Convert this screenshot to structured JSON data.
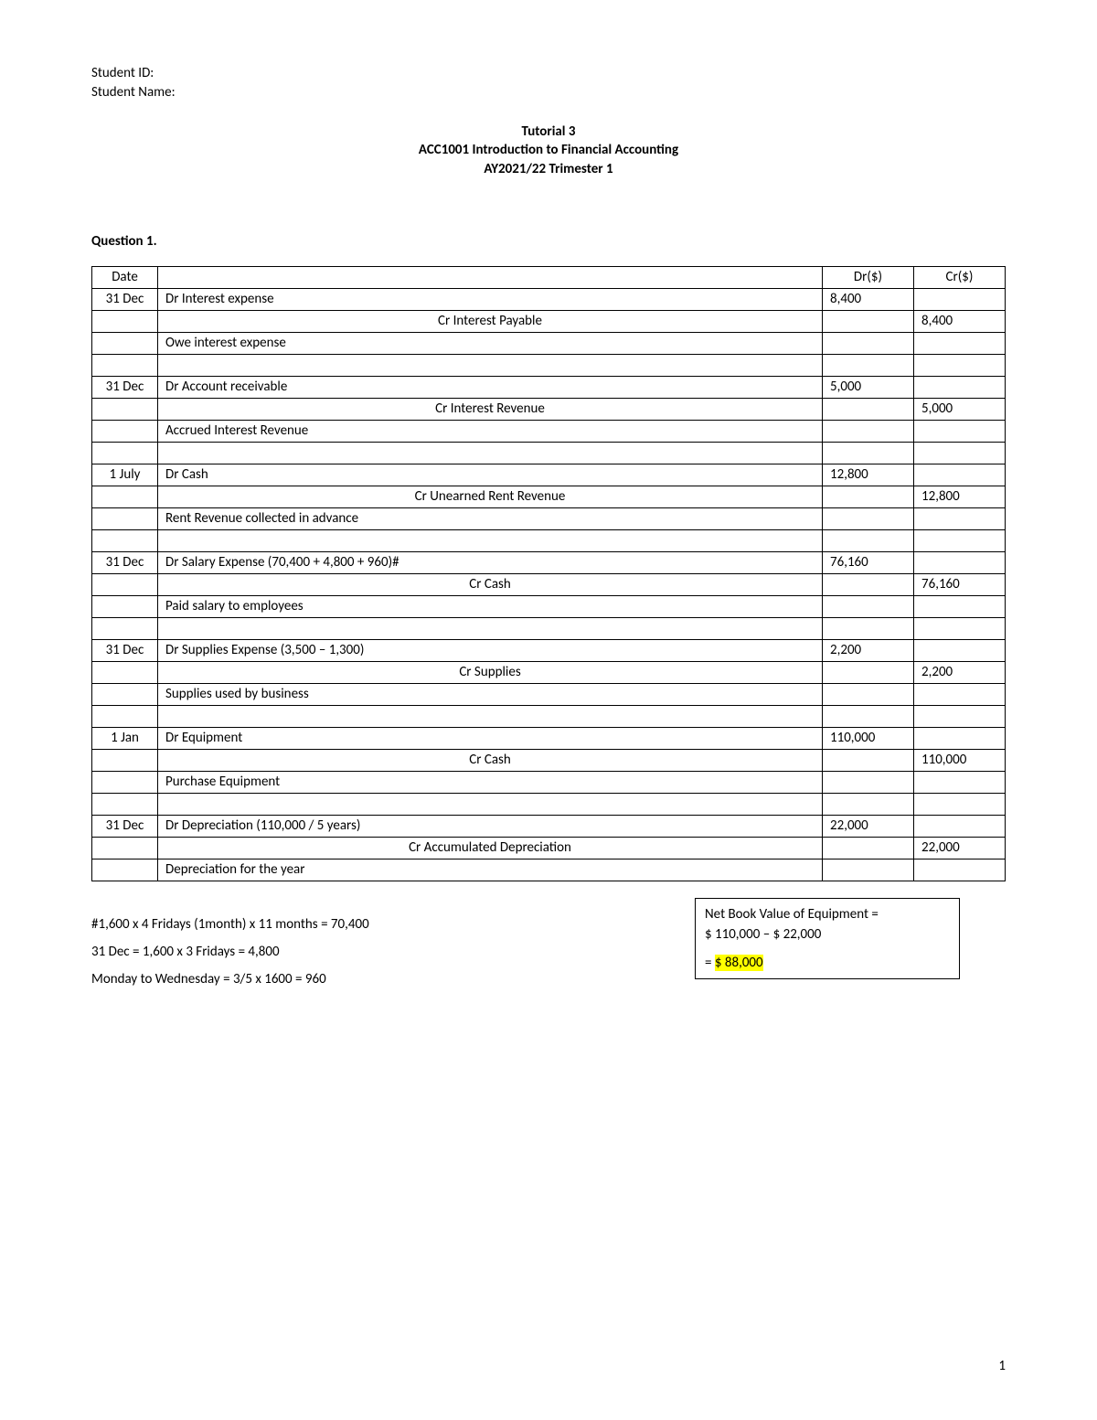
{
  "student": {
    "id_label": "Student ID:",
    "name_label": "Student Name:"
  },
  "header": {
    "line1": "Tutorial 3",
    "line2": "ACC1001 Introduction to Financial Accounting",
    "line3": "AY2021/22 Trimester 1"
  },
  "question_label": "Question 1.",
  "columns": {
    "date": "Date",
    "desc": "",
    "dr": "Dr($)",
    "cr": "Cr($)"
  },
  "rows": [
    {
      "date": "31 Dec",
      "desc": "Dr Interest expense",
      "dr": "8,400",
      "cr": "",
      "cls": ""
    },
    {
      "date": "",
      "desc": "Cr Interest Payable",
      "dr": "",
      "cr": "8,400",
      "cls": "indent-cr"
    },
    {
      "date": "",
      "desc": "Owe interest expense",
      "dr": "",
      "cr": "",
      "cls": ""
    },
    {
      "date": "",
      "desc": "",
      "dr": "",
      "cr": "",
      "cls": ""
    },
    {
      "date": "31 Dec",
      "desc": "Dr Account receivable",
      "dr": "5,000",
      "cr": "",
      "cls": ""
    },
    {
      "date": "",
      "desc": "Cr Interest Revenue",
      "dr": "",
      "cr": "5,000",
      "cls": "indent-cr"
    },
    {
      "date": "",
      "desc": "Accrued Interest Revenue",
      "dr": "",
      "cr": "",
      "cls": ""
    },
    {
      "date": "",
      "desc": "",
      "dr": "",
      "cr": "",
      "cls": ""
    },
    {
      "date": "1 July",
      "desc": "Dr Cash",
      "dr": "12,800",
      "cr": "",
      "cls": ""
    },
    {
      "date": "",
      "desc": "Cr Unearned Rent Revenue",
      "dr": "",
      "cr": "12,800",
      "cls": "indent-cr"
    },
    {
      "date": "",
      "desc": "Rent Revenue collected in advance",
      "dr": "",
      "cr": "",
      "cls": ""
    },
    {
      "date": "",
      "desc": "",
      "dr": "",
      "cr": "",
      "cls": ""
    },
    {
      "date": "31 Dec",
      "desc": "Dr Salary Expense (70,400 + 4,800 + 960)#",
      "dr": "76,160",
      "cr": "",
      "cls": ""
    },
    {
      "date": "",
      "desc": "Cr Cash",
      "dr": "",
      "cr": "76,160",
      "cls": "indent-cr"
    },
    {
      "date": "",
      "desc": "Paid salary to employees",
      "dr": "",
      "cr": "",
      "cls": ""
    },
    {
      "date": "",
      "desc": "",
      "dr": "",
      "cr": "",
      "cls": ""
    },
    {
      "date": "31 Dec",
      "desc": "Dr Supplies Expense (3,500 – 1,300)",
      "dr": "2,200",
      "cr": "",
      "cls": ""
    },
    {
      "date": "",
      "desc": "Cr Supplies",
      "dr": "",
      "cr": "2,200",
      "cls": "indent-cr"
    },
    {
      "date": "",
      "desc": "Supplies used by business",
      "dr": "",
      "cr": "",
      "cls": ""
    },
    {
      "date": "",
      "desc": "",
      "dr": "",
      "cr": "",
      "cls": ""
    },
    {
      "date": "1 Jan",
      "desc": "Dr Equipment",
      "dr": "110,000",
      "cr": "",
      "cls": ""
    },
    {
      "date": "",
      "desc": "Cr Cash",
      "dr": "",
      "cr": "110,000",
      "cls": "indent-cr"
    },
    {
      "date": "",
      "desc": "Purchase Equipment",
      "dr": "",
      "cr": "",
      "cls": ""
    },
    {
      "date": "",
      "desc": "",
      "dr": "",
      "cr": "",
      "cls": ""
    },
    {
      "date": "31 Dec",
      "desc": "Dr Depreciation (110,000 / 5 years)",
      "dr": "22,000",
      "cr": "",
      "cls": ""
    },
    {
      "date": "",
      "desc": "Cr Accumulated Depreciation",
      "dr": "",
      "cr": "22,000",
      "cls": "indent-cr"
    },
    {
      "date": "",
      "desc": "Depreciation for the year",
      "dr": "",
      "cr": "",
      "cls": ""
    }
  ],
  "notes": {
    "l1": "#1,600 x 4 Fridays (1month) x 11 months = 70,400",
    "l2": "31 Dec = 1,600 x 3 Fridays = 4,800",
    "l3": "Monday to Wednesday = 3/5 x 1600 = 960"
  },
  "nbv": {
    "line1": "Net Book Value of Equipment =",
    "line2": "$ 110,000 – $ 22,000",
    "equals": "= ",
    "result": "$ 88,000"
  },
  "page_number": "1"
}
